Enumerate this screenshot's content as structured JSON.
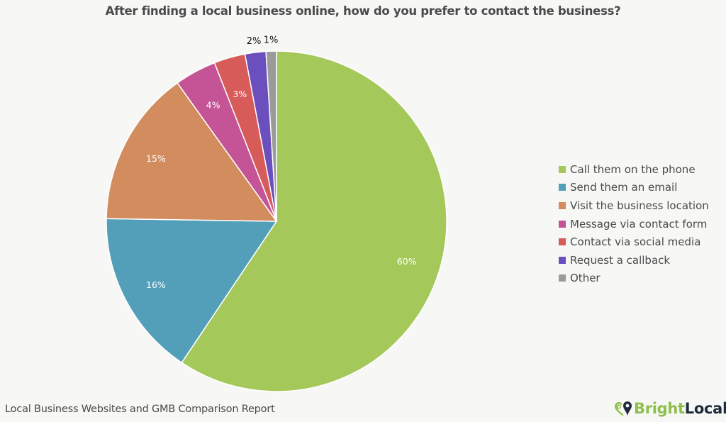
{
  "chart_data": {
    "type": "pie",
    "title": "After finding a local business online, how do you prefer to contact the business?",
    "categories": [
      "Call them on the phone",
      "Send them an email",
      "Visit the business location",
      "Message via contact form",
      "Contact via social media",
      "Request a callback",
      "Other"
    ],
    "values": [
      60,
      16,
      15,
      4,
      3,
      2,
      1
    ],
    "labels": [
      "60%",
      "16%",
      "15%",
      "4%",
      "3%",
      "2%",
      "1%"
    ],
    "colors": [
      "#a5c85a",
      "#539fba",
      "#d28c5e",
      "#c45496",
      "#d75b59",
      "#6a4fbd",
      "#9b9b9b"
    ],
    "start_angle": "12 o'clock, clockwise",
    "legend_position": "right",
    "unit": "%"
  },
  "footer": {
    "source": "Local Business Websites and GMB Comparison Report",
    "logo_bright": "Bright",
    "logo_local": "Local"
  }
}
